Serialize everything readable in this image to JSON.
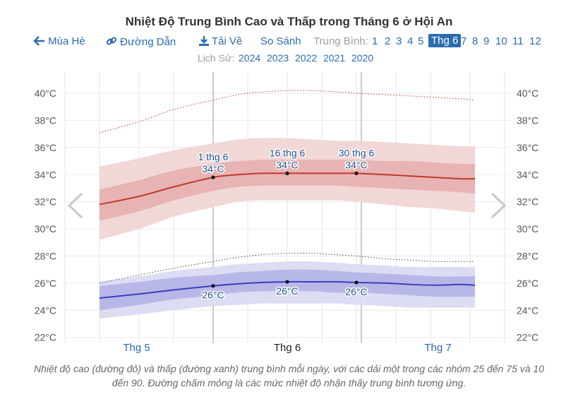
{
  "title": "Nhiệt Độ Trung Bình Cao và Thấp trong Tháng 6 ở Hội An",
  "nav": {
    "season_label": "Mùa Hè",
    "link_label": "Đường Dẫn",
    "download_label": "Tải Về",
    "compare_label": "So Sánh",
    "average_label": "Trung Bình:",
    "months": [
      "1",
      "2",
      "3",
      "4",
      "5",
      "Thg 6",
      "7",
      "8",
      "9",
      "10",
      "11",
      "12"
    ],
    "active_month": "Thg 6"
  },
  "history": {
    "label": "Lịch Sử:",
    "years": [
      "2024",
      "2023",
      "2022",
      "2021",
      "2020"
    ]
  },
  "colors": {
    "accent": "#2a6cb0",
    "high_line": "#c0392b",
    "low_line": "#3a3fbf"
  },
  "chart_data": {
    "type": "line",
    "title": "Nhiệt Độ Trung Bình Cao và Thấp trong Tháng 6 ở Hội An",
    "y_unit": "°C",
    "ylim": [
      22,
      41
    ],
    "y_ticks": [
      "22°C",
      "24°C",
      "26°C",
      "28°C",
      "30°C",
      "32°C",
      "34°C",
      "36°C",
      "38°C",
      "40°C"
    ],
    "month_labels": [
      "Thg 5",
      "Thg 6",
      "Thg 7"
    ],
    "current_month_label": "Thg 6",
    "x_days": [
      -23,
      -15,
      -8,
      0,
      5,
      10,
      15,
      20,
      25,
      29,
      35,
      40,
      45,
      50,
      53
    ],
    "series": [
      {
        "key": "high_avg",
        "values": [
          31.8,
          32.4,
          33.1,
          33.8,
          34.0,
          34.1,
          34.1,
          34.1,
          34.1,
          34.1,
          34.0,
          33.9,
          33.8,
          33.7,
          33.7
        ]
      },
      {
        "key": "high_p25",
        "values": [
          30.6,
          31.3,
          32.1,
          32.8,
          33.1,
          33.2,
          33.2,
          33.2,
          33.2,
          33.1,
          33.0,
          32.9,
          32.8,
          32.7,
          32.6
        ]
      },
      {
        "key": "high_p75",
        "values": [
          32.9,
          33.6,
          34.3,
          34.8,
          35.0,
          35.1,
          35.1,
          35.1,
          35.1,
          35.1,
          35.0,
          35.0,
          34.9,
          34.8,
          34.8
        ]
      },
      {
        "key": "high_p10",
        "values": [
          29.2,
          30.0,
          30.9,
          31.6,
          32.0,
          32.1,
          32.1,
          32.1,
          32.1,
          32.0,
          31.8,
          31.6,
          31.5,
          31.3,
          31.2
        ]
      },
      {
        "key": "high_p90",
        "values": [
          34.6,
          35.2,
          35.8,
          36.3,
          36.6,
          36.7,
          36.7,
          36.6,
          36.5,
          36.5,
          36.4,
          36.3,
          36.2,
          36.1,
          36.1
        ]
      },
      {
        "key": "high_feels",
        "values": [
          37.1,
          37.9,
          38.8,
          39.5,
          39.9,
          40.1,
          40.2,
          40.2,
          40.1,
          40.0,
          39.9,
          39.8,
          39.7,
          39.6,
          39.5
        ]
      },
      {
        "key": "low_avg",
        "values": [
          24.9,
          25.2,
          25.5,
          25.8,
          25.95,
          26.05,
          26.1,
          26.1,
          26.1,
          26.05,
          26.0,
          25.9,
          25.85,
          25.9,
          25.85
        ]
      },
      {
        "key": "low_p25",
        "values": [
          24.0,
          24.4,
          24.8,
          25.1,
          25.3,
          25.4,
          25.4,
          25.4,
          25.3,
          25.3,
          25.2,
          25.1,
          25.0,
          25.0,
          25.0
        ]
      },
      {
        "key": "low_p75",
        "values": [
          25.8,
          26.1,
          26.4,
          26.6,
          26.8,
          26.9,
          27.0,
          27.0,
          26.9,
          26.8,
          26.7,
          26.6,
          26.5,
          26.5,
          26.5
        ]
      },
      {
        "key": "low_p10",
        "values": [
          23.4,
          23.7,
          24.0,
          24.3,
          24.4,
          24.5,
          24.5,
          24.5,
          24.5,
          24.4,
          24.3,
          24.2,
          24.2,
          24.2,
          24.2
        ]
      },
      {
        "key": "low_p90",
        "values": [
          26.1,
          26.5,
          26.9,
          27.2,
          27.4,
          27.5,
          27.6,
          27.6,
          27.5,
          27.4,
          27.3,
          27.2,
          27.2,
          27.2,
          27.2
        ]
      },
      {
        "key": "low_feels",
        "values": [
          26.0,
          26.6,
          27.1,
          27.6,
          27.9,
          28.1,
          28.2,
          28.2,
          28.1,
          28.0,
          27.8,
          27.7,
          27.6,
          27.6,
          27.6
        ]
      }
    ],
    "annotations": [
      {
        "day": 0,
        "label": "1 thg 6",
        "high": 34,
        "high_label": "34°C",
        "low": 26,
        "low_label": "26°C"
      },
      {
        "day": 15,
        "label": "16 thg 6",
        "high": 34,
        "high_label": "34°C",
        "low": 26,
        "low_label": "26°C"
      },
      {
        "day": 29,
        "label": "30 thg 6",
        "high": 34,
        "high_label": "34°C",
        "low": 26,
        "low_label": "26°C"
      }
    ],
    "grid": true
  },
  "caption": "Nhiệt độ cao (đường đỏ) và thấp (đường xanh) trung bình mỗi ngày, với các dải một trong các nhóm 25 đến 75 và 10 đến 90. Đường chấm mỏng là các mức nhiệt độ nhận thấy trung bình tương ứng."
}
